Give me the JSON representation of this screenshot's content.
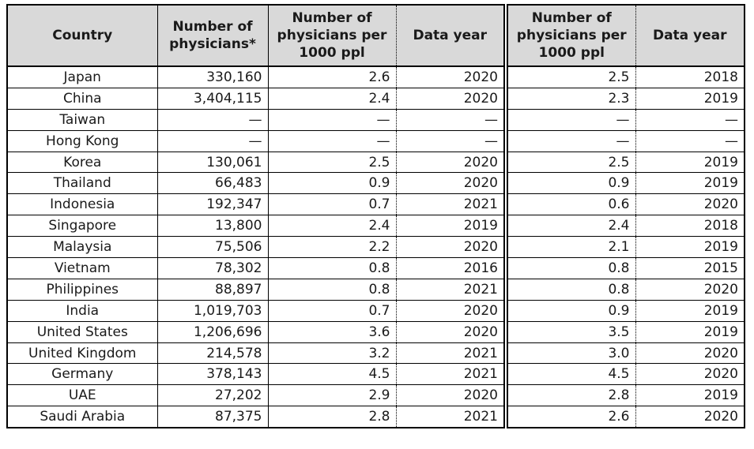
{
  "colors": {
    "header_background": "#d9d9d9",
    "border": "#000000",
    "text": "#1a1a1a",
    "page_background": "#ffffff"
  },
  "chart_data": {
    "type": "table",
    "columns": [
      "Country",
      "Number of physicians*",
      "Number of physicians per 1000 ppl",
      "Data year",
      "Number of physicians per 1000 ppl",
      "Data year"
    ],
    "missing_value_symbol": "—",
    "rows": [
      [
        "Japan",
        "330,160",
        "2.6",
        "2020",
        "2.5",
        "2018"
      ],
      [
        "China",
        "3,404,115",
        "2.4",
        "2020",
        "2.3",
        "2019"
      ],
      [
        "Taiwan",
        "—",
        "—",
        "—",
        "—",
        "—"
      ],
      [
        "Hong Kong",
        "—",
        "—",
        "—",
        "—",
        "—"
      ],
      [
        "Korea",
        "130,061",
        "2.5",
        "2020",
        "2.5",
        "2019"
      ],
      [
        "Thailand",
        "66,483",
        "0.9",
        "2020",
        "0.9",
        "2019"
      ],
      [
        "Indonesia",
        "192,347",
        "0.7",
        "2021",
        "0.6",
        "2020"
      ],
      [
        "Singapore",
        "13,800",
        "2.4",
        "2019",
        "2.4",
        "2018"
      ],
      [
        "Malaysia",
        "75,506",
        "2.2",
        "2020",
        "2.1",
        "2019"
      ],
      [
        "Vietnam",
        "78,302",
        "0.8",
        "2016",
        "0.8",
        "2015"
      ],
      [
        "Philippines",
        "88,897",
        "0.8",
        "2021",
        "0.8",
        "2020"
      ],
      [
        "India",
        "1,019,703",
        "0.7",
        "2020",
        "0.9",
        "2019"
      ],
      [
        "United States",
        "1,206,696",
        "3.6",
        "2020",
        "3.5",
        "2019"
      ],
      [
        "United Kingdom",
        "214,578",
        "3.2",
        "2021",
        "3.0",
        "2020"
      ],
      [
        "Germany",
        "378,143",
        "4.5",
        "2021",
        "4.5",
        "2020"
      ],
      [
        "UAE",
        "27,202",
        "2.9",
        "2020",
        "2.8",
        "2019"
      ],
      [
        "Saudi Arabia",
        "87,375",
        "2.8",
        "2021",
        "2.6",
        "2020"
      ]
    ]
  }
}
